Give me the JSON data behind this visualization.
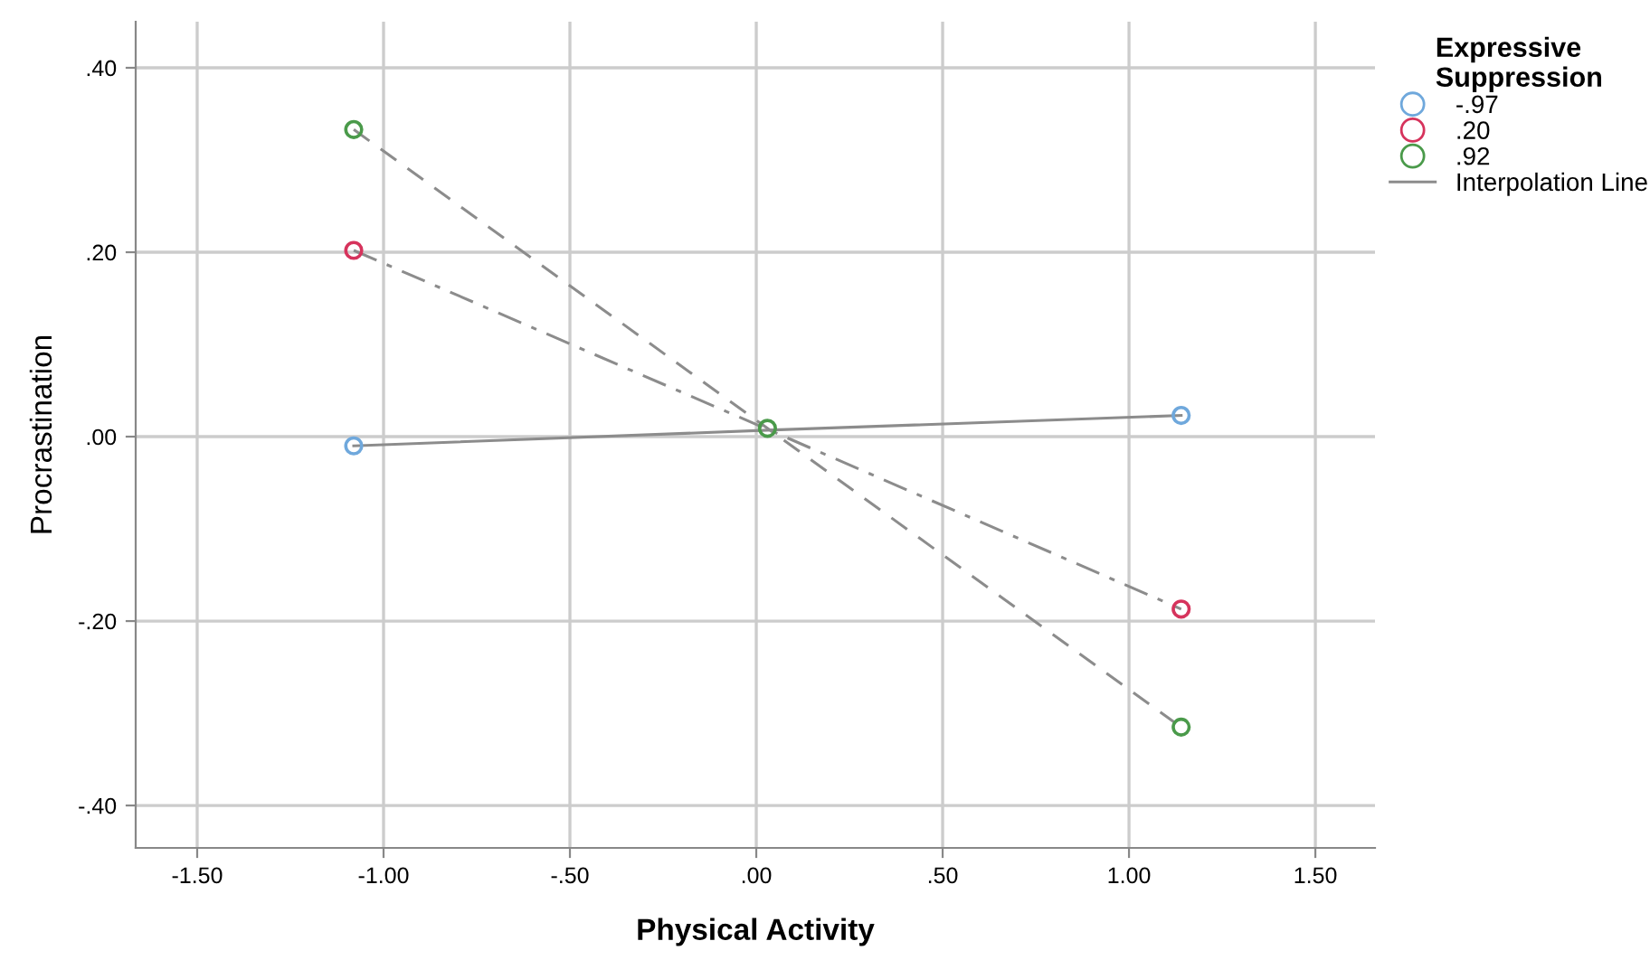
{
  "chart_data": {
    "type": "scatter",
    "xlabel": "Physical Activity",
    "ylabel": "Procrastination",
    "legend_title": "Expressive\nSuppression",
    "xlim": [
      -1.665,
      1.66
    ],
    "ylim": [
      -0.446,
      0.45
    ],
    "xticks": [
      {
        "value": -1.5,
        "label": "-1.50"
      },
      {
        "value": -1.0,
        "label": "-1.00"
      },
      {
        "value": -0.5,
        "label": "-.50"
      },
      {
        "value": 0,
        "label": ".00"
      },
      {
        "value": 0.5,
        "label": ".50"
      },
      {
        "value": 1.0,
        "label": "1.00"
      },
      {
        "value": 1.5,
        "label": "1.50"
      }
    ],
    "yticks": [
      {
        "value": -0.4,
        "label": "-.40"
      },
      {
        "value": -0.2,
        "label": "-.20"
      },
      {
        "value": 0,
        "label": ".00"
      },
      {
        "value": 0.2,
        "label": ".20"
      },
      {
        "value": 0.4,
        "label": ".40"
      }
    ],
    "grid": true,
    "legend": "right",
    "marker": "circle",
    "series": [
      {
        "name": "-.97",
        "color": "#6fa8dc",
        "x": [
          -1.08,
          0.03,
          1.14
        ],
        "values": [
          -0.01,
          null,
          0.023
        ]
      },
      {
        "name": ".20",
        "color": "#d6335c",
        "x": [
          -1.08,
          0.03,
          1.14
        ],
        "values": [
          0.202,
          null,
          -0.187
        ]
      },
      {
        "name": ".92",
        "color": "#4a9a4a",
        "x": [
          -1.08,
          0.03,
          1.14
        ],
        "values": [
          0.333,
          0.009,
          -0.315
        ]
      },
      {
        "name": "Interpolation Line",
        "type": "line",
        "color": "#8c8c8c",
        "line_style": "solid",
        "marker": "none",
        "x": [
          -1.08,
          0.03,
          1.14
        ],
        "values": [
          -0.01,
          0.007,
          0.023
        ]
      },
      {
        "type": "line",
        "color": "#8c8c8c",
        "line_style": "dashdot",
        "marker": "none",
        "x": [
          -1.08,
          0.03,
          1.14
        ],
        "values": [
          0.202,
          0.008,
          -0.187
        ]
      },
      {
        "type": "line",
        "color": "#8c8c8c",
        "line_style": "dashed",
        "marker": "none",
        "x": [
          -1.08,
          0.03,
          1.14
        ],
        "values": [
          0.333,
          0.009,
          -0.315
        ]
      }
    ]
  }
}
